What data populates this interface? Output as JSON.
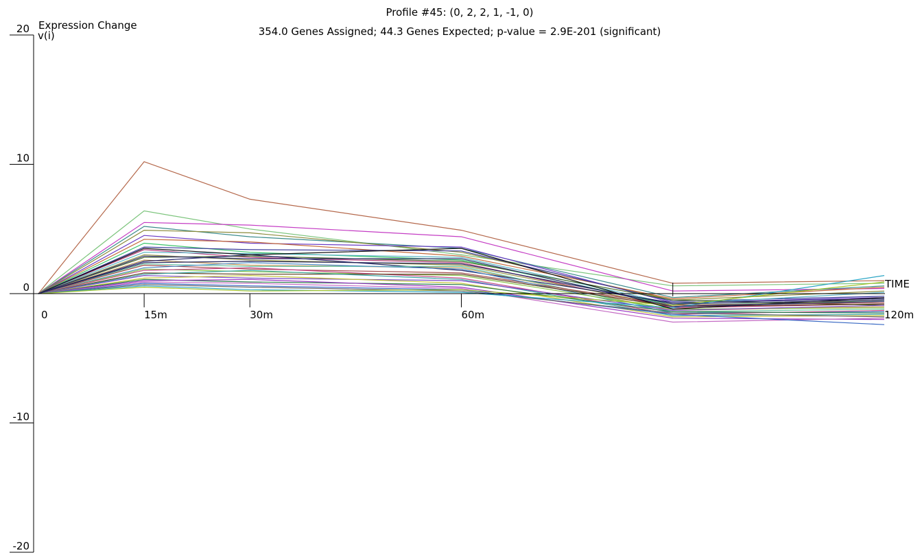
{
  "chart_data": {
    "type": "line",
    "title": "Profile #45: (0, 2, 2, 1, -1, 0)",
    "subtitle": "354.0 Genes Assigned; 44.3 Genes Expected; p-value = 2.9E-201 (significant)",
    "ylabel": "Expression Change",
    "ylabel_sub": "v(i)",
    "xlabel": "TIME",
    "ylim": [
      -20,
      20
    ],
    "yticks": [
      20,
      10,
      0,
      -10,
      -20
    ],
    "ytick_labels": [
      "20",
      "10",
      "0",
      "-10",
      "-20"
    ],
    "x": [
      0,
      15,
      30,
      60,
      90,
      120
    ],
    "xtick_labels": [
      "0",
      "15m",
      "30m",
      "60m",
      "",
      "120m"
    ],
    "series_count": 354,
    "sample_series": [
      {
        "values": [
          0,
          10.2,
          7.3,
          4.9,
          0.8,
          1.0
        ],
        "color": "#b4674a"
      },
      {
        "values": [
          0,
          6.4,
          5.0,
          3.0,
          0.6,
          0.8
        ],
        "color": "#7cc47c"
      },
      {
        "values": [
          0,
          5.5,
          5.3,
          4.4,
          0.2,
          0.4
        ],
        "color": "#c43cc4"
      },
      {
        "values": [
          0,
          5.2,
          4.4,
          3.5,
          -0.3,
          0.6
        ],
        "color": "#3a8a8a"
      },
      {
        "values": [
          0,
          4.9,
          4.7,
          3.2,
          -0.5,
          0.2
        ],
        "color": "#8a8a3a"
      },
      {
        "values": [
          0,
          4.5,
          3.9,
          3.6,
          -0.7,
          -0.3
        ],
        "color": "#6a3ac4"
      },
      {
        "values": [
          0,
          4.2,
          4.0,
          2.9,
          -0.4,
          0.5
        ],
        "color": "#c46a3a"
      },
      {
        "values": [
          0,
          3.9,
          3.2,
          2.6,
          -0.9,
          -0.6
        ],
        "color": "#3ac46a"
      },
      {
        "values": [
          0,
          3.6,
          3.4,
          3.3,
          -0.6,
          -0.2
        ],
        "color": "#3a3a9a"
      },
      {
        "values": [
          0,
          3.4,
          2.8,
          2.4,
          -1.1,
          -0.8
        ],
        "color": "#b43a7a"
      },
      {
        "values": [
          0,
          3.2,
          3.1,
          2.8,
          -0.8,
          0.1
        ],
        "color": "#5ab4c4"
      },
      {
        "values": [
          0,
          3.0,
          2.6,
          2.2,
          -1.0,
          -0.5
        ],
        "color": "#9a9a4a"
      },
      {
        "values": [
          0,
          2.8,
          2.9,
          2.5,
          -0.5,
          -0.9
        ],
        "color": "#4a6a2a"
      },
      {
        "values": [
          0,
          2.6,
          2.2,
          2.0,
          -1.3,
          -1.0
        ],
        "color": "#c49a5a"
      },
      {
        "values": [
          0,
          2.5,
          3.0,
          1.8,
          -0.7,
          -0.4
        ],
        "color": "#222266"
      },
      {
        "values": [
          0,
          2.3,
          2.1,
          2.1,
          -1.4,
          -1.2
        ],
        "color": "#6ac4a4"
      },
      {
        "values": [
          0,
          2.2,
          1.9,
          1.6,
          -0.9,
          -0.7
        ],
        "color": "#a44a4a"
      },
      {
        "values": [
          0,
          2.0,
          2.4,
          1.9,
          -1.5,
          -1.4
        ],
        "color": "#4a8ac4"
      },
      {
        "values": [
          0,
          1.9,
          1.7,
          1.4,
          -1.2,
          -1.1
        ],
        "color": "#8ac44a"
      },
      {
        "values": [
          0,
          1.8,
          2.0,
          1.2,
          -1.6,
          -1.3
        ],
        "color": "#c44a8a"
      },
      {
        "values": [
          0,
          1.6,
          1.5,
          1.5,
          -1.0,
          -0.8
        ],
        "color": "#5a3a1a"
      },
      {
        "values": [
          0,
          1.5,
          1.8,
          1.1,
          -1.7,
          -1.6
        ],
        "color": "#3aa4a4"
      },
      {
        "values": [
          0,
          1.4,
          1.2,
          1.0,
          -1.3,
          -0.9
        ],
        "color": "#7a4ac4"
      },
      {
        "values": [
          0,
          1.2,
          1.4,
          0.8,
          -1.8,
          -1.7
        ],
        "color": "#c4c43a"
      },
      {
        "values": [
          0,
          1.1,
          0.9,
          0.7,
          -1.4,
          -1.5
        ],
        "color": "#2a7a4a"
      },
      {
        "values": [
          0,
          1.0,
          1.1,
          0.5,
          -1.9,
          -2.0
        ],
        "color": "#9a3ac4"
      },
      {
        "values": [
          0,
          0.9,
          0.8,
          0.4,
          -2.2,
          -1.9
        ],
        "color": "#c46ac4"
      },
      {
        "values": [
          0,
          0.8,
          0.6,
          0.3,
          -1.6,
          -2.4
        ],
        "color": "#3a6ac4"
      },
      {
        "values": [
          0,
          0.7,
          0.5,
          0.2,
          -1.5,
          -1.8
        ],
        "color": "#6a6a6a"
      },
      {
        "values": [
          0,
          0.6,
          0.3,
          0.1,
          -1.1,
          1.4
        ],
        "color": "#2aa4c4"
      },
      {
        "values": [
          0,
          0.5,
          0.2,
          0.3,
          -0.9,
          0.9
        ],
        "color": "#a4c42a"
      },
      {
        "values": [
          0,
          3.5,
          3.0,
          3.5,
          -1.2,
          -0.3
        ],
        "color": "#111111"
      },
      {
        "values": [
          0,
          2.9,
          2.7,
          2.7,
          -1.0,
          -0.6
        ],
        "color": "#303070"
      },
      {
        "values": [
          0,
          2.4,
          2.5,
          2.3,
          -0.8,
          -0.5
        ],
        "color": "#24245a"
      }
    ]
  }
}
